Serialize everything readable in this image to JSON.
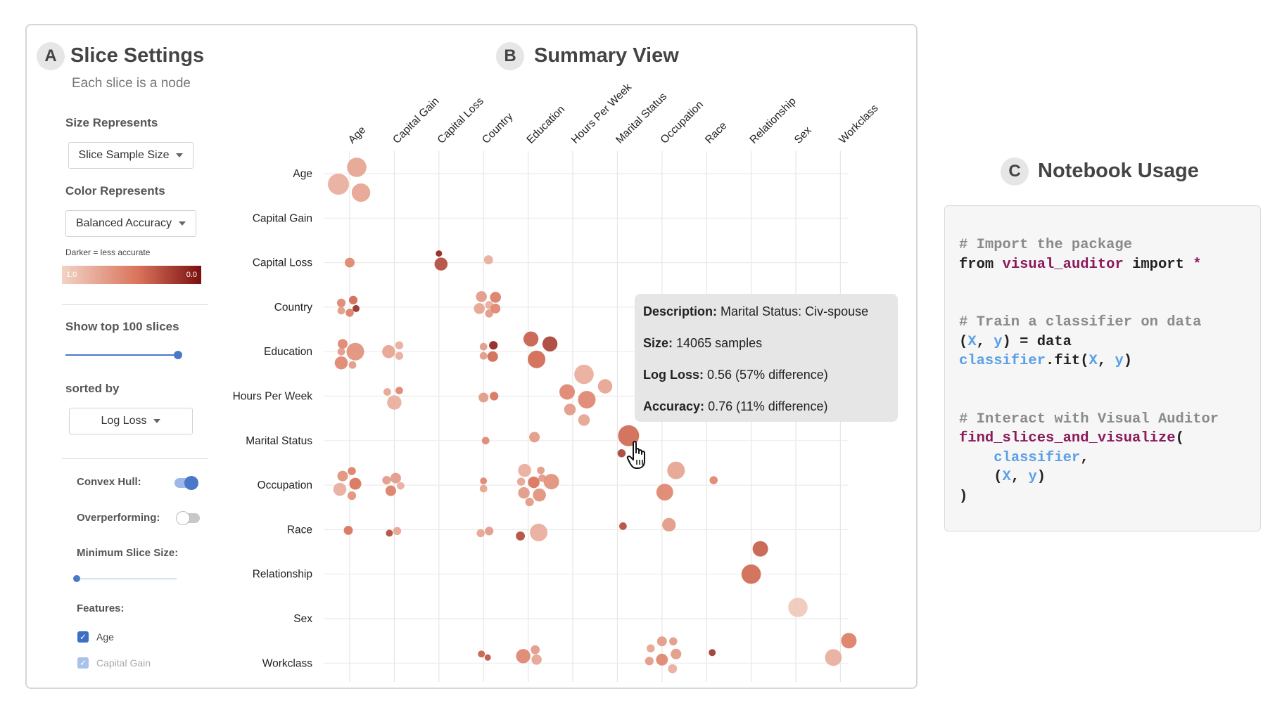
{
  "settings": {
    "badge": "A",
    "title": "Slice Settings",
    "subtitle": "Each slice is a node",
    "size_label": "Size Represents",
    "size_value": "Slice Sample Size",
    "color_label": "Color Represents",
    "color_value": "Balanced Accuracy",
    "color_hint": "Darker = less accurate",
    "scale_min": "1.0",
    "scale_max": "0.0",
    "top_label": "Show top 100 slices",
    "top_value": 100,
    "sorted_label": "sorted by",
    "sorted_value": "Log Loss",
    "convex_hull_label": "Convex Hull:",
    "convex_hull_on": true,
    "overperforming_label": "Overperforming:",
    "overperforming_on": false,
    "min_slice_label": "Minimum Slice Size:",
    "features_label": "Features:",
    "features": [
      {
        "label": "Age",
        "checked": true
      },
      {
        "label": "Capital Gain",
        "checked": true
      }
    ]
  },
  "summary": {
    "badge": "B",
    "title": "Summary View"
  },
  "notebook": {
    "badge": "C",
    "title": "Notebook Usage"
  },
  "tooltip": {
    "description_label": "Description:",
    "description_value": "Marital Status: Civ-spouse",
    "size_label": "Size:",
    "size_value": "14065 samples",
    "logloss_label": "Log Loss:",
    "logloss_value": "0.56 (57% difference)",
    "accuracy_label": "Accuracy:",
    "accuracy_value": "0.76 (11% difference)"
  },
  "colors": {
    "light": "#f2d3c6",
    "mid": "#d9735a",
    "dark": "#7a1010",
    "accent": "#4a78c8"
  },
  "chart_data": {
    "type": "scatter",
    "x_features": [
      "Age",
      "Capital Gain",
      "Capital Loss",
      "Country",
      "Education",
      "Hours Per Week",
      "Marital Status",
      "Occupation",
      "Race",
      "Relationship",
      "Sex",
      "Workclass"
    ],
    "y_features": [
      "Age",
      "Capital Gain",
      "Capital Loss",
      "Country",
      "Education",
      "Hours Per Week",
      "Marital Status",
      "Occupation",
      "Race",
      "Relationship",
      "Sex",
      "Workclass"
    ],
    "legend": {
      "size": "Slice Sample Size",
      "color": "Balanced Accuracy (darker = less accurate)"
    },
    "bubbles": [
      {
        "row": "Age",
        "col": "Age",
        "dx": 10,
        "dy": -9,
        "size": 5,
        "acc": 0.75
      },
      {
        "row": "Age",
        "col": "Age",
        "dx": -16,
        "dy": 15,
        "size": 6,
        "acc": 0.8
      },
      {
        "row": "Age",
        "col": "Age",
        "dx": 16,
        "dy": 27,
        "size": 4.5,
        "acc": 0.75
      },
      {
        "row": "Capital Loss",
        "col": "Age",
        "dx": 0,
        "dy": 0,
        "size": 1,
        "acc": 0.6
      },
      {
        "row": "Capital Loss",
        "col": "Capital Loss",
        "dx": 0,
        "dy": -13,
        "size": 0.3,
        "acc": 0.1
      },
      {
        "row": "Capital Loss",
        "col": "Capital Loss",
        "dx": 3,
        "dy": 2,
        "size": 2,
        "acc": 0.3
      },
      {
        "row": "Capital Loss",
        "col": "Country",
        "dx": 7,
        "dy": -4,
        "size": 0.8,
        "acc": 0.8
      },
      {
        "row": "Country",
        "col": "Age",
        "dx": 5,
        "dy": -10,
        "size": 0.7,
        "acc": 0.45
      },
      {
        "row": "Country",
        "col": "Age",
        "dx": -12,
        "dy": -6,
        "size": 0.7,
        "acc": 0.6
      },
      {
        "row": "Country",
        "col": "Age",
        "dx": -12,
        "dy": 5,
        "size": 0.5,
        "acc": 0.7
      },
      {
        "row": "Country",
        "col": "Age",
        "dx": 0,
        "dy": 8,
        "size": 0.6,
        "acc": 0.55
      },
      {
        "row": "Country",
        "col": "Age",
        "dx": 9,
        "dy": 2,
        "size": 0.4,
        "acc": 0.15
      },
      {
        "row": "Country",
        "col": "Country",
        "dx": -3,
        "dy": -15,
        "size": 1.3,
        "acc": 0.7
      },
      {
        "row": "Country",
        "col": "Country",
        "dx": 17,
        "dy": -14,
        "size": 1.3,
        "acc": 0.55
      },
      {
        "row": "Country",
        "col": "Country",
        "dx": 8,
        "dy": -3,
        "size": 0.6,
        "acc": 0.8
      },
      {
        "row": "Country",
        "col": "Country",
        "dx": -6,
        "dy": 2,
        "size": 1.3,
        "acc": 0.75
      },
      {
        "row": "Country",
        "col": "Country",
        "dx": 8,
        "dy": 9,
        "size": 0.6,
        "acc": 0.7
      },
      {
        "row": "Country",
        "col": "Country",
        "dx": 17,
        "dy": 2,
        "size": 1,
        "acc": 0.6
      },
      {
        "row": "Education",
        "col": "Age",
        "dx": -10,
        "dy": -11,
        "size": 1,
        "acc": 0.6
      },
      {
        "row": "Education",
        "col": "Age",
        "dx": 8,
        "dy": 0,
        "size": 4,
        "acc": 0.65
      },
      {
        "row": "Education",
        "col": "Age",
        "dx": -12,
        "dy": 0,
        "size": 0.5,
        "acc": 0.7
      },
      {
        "row": "Education",
        "col": "Age",
        "dx": -12,
        "dy": 16,
        "size": 2,
        "acc": 0.6
      },
      {
        "row": "Education",
        "col": "Age",
        "dx": 4,
        "dy": 19,
        "size": 0.5,
        "acc": 0.7
      },
      {
        "row": "Education",
        "col": "Capital Gain",
        "dx": -8,
        "dy": 0,
        "size": 2,
        "acc": 0.75
      },
      {
        "row": "Education",
        "col": "Capital Gain",
        "dx": 7,
        "dy": -9,
        "size": 0.6,
        "acc": 0.8
      },
      {
        "row": "Education",
        "col": "Capital Gain",
        "dx": 7,
        "dy": 6,
        "size": 0.6,
        "acc": 0.8
      },
      {
        "row": "Education",
        "col": "Country",
        "dx": 0,
        "dy": -7,
        "size": 0.5,
        "acc": 0.7
      },
      {
        "row": "Education",
        "col": "Country",
        "dx": 0,
        "dy": 6,
        "size": 0.5,
        "acc": 0.7
      },
      {
        "row": "Education",
        "col": "Country",
        "dx": 14,
        "dy": -9,
        "size": 0.7,
        "acc": 0.1
      },
      {
        "row": "Education",
        "col": "Country",
        "dx": 13,
        "dy": 7,
        "size": 1.2,
        "acc": 0.45
      },
      {
        "row": "Education",
        "col": "Education",
        "dx": 4,
        "dy": -18,
        "size": 2.8,
        "acc": 0.4
      },
      {
        "row": "Education",
        "col": "Education",
        "dx": 31,
        "dy": -11,
        "size": 2.8,
        "acc": 0.25
      },
      {
        "row": "Education",
        "col": "Education",
        "dx": 12,
        "dy": 11,
        "size": 4,
        "acc": 0.45
      },
      {
        "row": "Hours Per Week",
        "col": "Capital Gain",
        "dx": -10,
        "dy": -6,
        "size": 0.5,
        "acc": 0.75
      },
      {
        "row": "Hours Per Week",
        "col": "Capital Gain",
        "dx": 7,
        "dy": -8,
        "size": 0.5,
        "acc": 0.6
      },
      {
        "row": "Hours Per Week",
        "col": "Capital Gain",
        "dx": 0,
        "dy": 9,
        "size": 2.5,
        "acc": 0.8
      },
      {
        "row": "Hours Per Week",
        "col": "Country",
        "dx": 0,
        "dy": 2,
        "size": 1,
        "acc": 0.7
      },
      {
        "row": "Hours Per Week",
        "col": "Country",
        "dx": 15,
        "dy": 0,
        "size": 0.7,
        "acc": 0.5
      },
      {
        "row": "Hours Per Week",
        "col": "Hours Per Week",
        "dx": 16,
        "dy": -31,
        "size": 5,
        "acc": 0.8
      },
      {
        "row": "Hours Per Week",
        "col": "Hours Per Week",
        "dx": 46,
        "dy": -14,
        "size": 2.5,
        "acc": 0.75
      },
      {
        "row": "Hours Per Week",
        "col": "Hours Per Week",
        "dx": -8,
        "dy": -6,
        "size": 3,
        "acc": 0.6
      },
      {
        "row": "Hours Per Week",
        "col": "Hours Per Week",
        "dx": 20,
        "dy": 5,
        "size": 4,
        "acc": 0.6
      },
      {
        "row": "Hours Per Week",
        "col": "Hours Per Week",
        "dx": -4,
        "dy": 19,
        "size": 1.5,
        "acc": 0.7
      },
      {
        "row": "Hours Per Week",
        "col": "Hours Per Week",
        "dx": 16,
        "dy": 34,
        "size": 1.5,
        "acc": 0.75
      },
      {
        "row": "Marital Status",
        "col": "Country",
        "dx": 3,
        "dy": 0,
        "size": 0.5,
        "acc": 0.6
      },
      {
        "row": "Marital Status",
        "col": "Education",
        "dx": 9,
        "dy": -5,
        "size": 1.2,
        "acc": 0.7
      },
      {
        "row": "Marital Status",
        "col": "Marital Status",
        "dx": 16,
        "dy": -7,
        "size": 6,
        "acc": 0.45
      },
      {
        "row": "Marital Status",
        "col": "Marital Status",
        "dx": 6,
        "dy": 18,
        "size": 0.6,
        "acc": 0.25
      },
      {
        "row": "Occupation",
        "col": "Age",
        "dx": -10,
        "dy": -13,
        "size": 1.2,
        "acc": 0.65
      },
      {
        "row": "Occupation",
        "col": "Age",
        "dx": 3,
        "dy": -20,
        "size": 0.6,
        "acc": 0.55
      },
      {
        "row": "Occupation",
        "col": "Age",
        "dx": 8,
        "dy": -2,
        "size": 1.6,
        "acc": 0.5
      },
      {
        "row": "Occupation",
        "col": "Age",
        "dx": -14,
        "dy": 6,
        "size": 2,
        "acc": 0.8
      },
      {
        "row": "Occupation",
        "col": "Age",
        "dx": 3,
        "dy": 15,
        "size": 0.7,
        "acc": 0.65
      },
      {
        "row": "Occupation",
        "col": "Capital Gain",
        "dx": -11,
        "dy": -7,
        "size": 0.7,
        "acc": 0.7
      },
      {
        "row": "Occupation",
        "col": "Capital Gain",
        "dx": 2,
        "dy": -10,
        "size": 1.2,
        "acc": 0.7
      },
      {
        "row": "Occupation",
        "col": "Capital Gain",
        "dx": 9,
        "dy": 1,
        "size": 0.5,
        "acc": 0.8
      },
      {
        "row": "Occupation",
        "col": "Capital Gain",
        "dx": -5,
        "dy": 8,
        "size": 1.2,
        "acc": 0.55
      },
      {
        "row": "Occupation",
        "col": "Country",
        "dx": 0,
        "dy": -6,
        "size": 0.4,
        "acc": 0.6
      },
      {
        "row": "Occupation",
        "col": "Country",
        "dx": 0,
        "dy": 5,
        "size": 0.5,
        "acc": 0.75
      },
      {
        "row": "Occupation",
        "col": "Education",
        "dx": -5,
        "dy": -21,
        "size": 2,
        "acc": 0.8
      },
      {
        "row": "Occupation",
        "col": "Education",
        "dx": 18,
        "dy": -21,
        "size": 0.5,
        "acc": 0.7
      },
      {
        "row": "Occupation",
        "col": "Education",
        "dx": -10,
        "dy": -5,
        "size": 0.6,
        "acc": 0.75
      },
      {
        "row": "Occupation",
        "col": "Education",
        "dx": 8,
        "dy": -4,
        "size": 1.5,
        "acc": 0.5
      },
      {
        "row": "Occupation",
        "col": "Education",
        "dx": 20,
        "dy": -10,
        "size": 0.5,
        "acc": 0.7
      },
      {
        "row": "Occupation",
        "col": "Education",
        "dx": 33,
        "dy": -5,
        "size": 3,
        "acc": 0.65
      },
      {
        "row": "Occupation",
        "col": "Education",
        "dx": -6,
        "dy": 11,
        "size": 1.5,
        "acc": 0.7
      },
      {
        "row": "Occupation",
        "col": "Education",
        "dx": 16,
        "dy": 14,
        "size": 2,
        "acc": 0.65
      },
      {
        "row": "Occupation",
        "col": "Education",
        "dx": 2,
        "dy": 24,
        "size": 0.7,
        "acc": 0.7
      },
      {
        "row": "Occupation",
        "col": "Occupation",
        "dx": 20,
        "dy": -21,
        "size": 4,
        "acc": 0.75
      },
      {
        "row": "Occupation",
        "col": "Occupation",
        "dx": 4,
        "dy": 10,
        "size": 3.6,
        "acc": 0.6
      },
      {
        "row": "Occupation",
        "col": "Race",
        "dx": 10,
        "dy": -7,
        "size": 0.6,
        "acc": 0.6
      },
      {
        "row": "Race",
        "col": "Age",
        "dx": -2,
        "dy": 1,
        "size": 0.8,
        "acc": 0.5
      },
      {
        "row": "Race",
        "col": "Capital Gain",
        "dx": -7,
        "dy": 5,
        "size": 0.4,
        "acc": 0.3
      },
      {
        "row": "Race",
        "col": "Capital Gain",
        "dx": 4,
        "dy": 2,
        "size": 0.6,
        "acc": 0.75
      },
      {
        "row": "Race",
        "col": "Country",
        "dx": -4,
        "dy": 5,
        "size": 0.6,
        "acc": 0.75
      },
      {
        "row": "Race",
        "col": "Country",
        "dx": 8,
        "dy": 2,
        "size": 0.7,
        "acc": 0.7
      },
      {
        "row": "Race",
        "col": "Education",
        "dx": -11,
        "dy": 9,
        "size": 0.8,
        "acc": 0.3
      },
      {
        "row": "Race",
        "col": "Education",
        "dx": 15,
        "dy": 4,
        "size": 4,
        "acc": 0.8
      },
      {
        "row": "Race",
        "col": "Marital Status",
        "dx": 8,
        "dy": -5,
        "size": 0.5,
        "acc": 0.3
      },
      {
        "row": "Race",
        "col": "Occupation",
        "dx": 10,
        "dy": -7,
        "size": 2.2,
        "acc": 0.7
      },
      {
        "row": "Relationship",
        "col": "Relationship",
        "dx": 13,
        "dy": -36,
        "size": 3,
        "acc": 0.4
      },
      {
        "row": "Relationship",
        "col": "Relationship",
        "dx": 0,
        "dy": 0,
        "size": 5,
        "acc": 0.45
      },
      {
        "row": "Sex",
        "col": "Sex",
        "dx": 3,
        "dy": -16,
        "size": 5,
        "acc": 0.95
      },
      {
        "row": "Workclass",
        "col": "Country",
        "dx": -3,
        "dy": -13,
        "size": 0.4,
        "acc": 0.4
      },
      {
        "row": "Workclass",
        "col": "Country",
        "dx": 6,
        "dy": -8,
        "size": 0.3,
        "acc": 0.35
      },
      {
        "row": "Workclass",
        "col": "Education",
        "dx": -7,
        "dy": -10,
        "size": 2.5,
        "acc": 0.6
      },
      {
        "row": "Workclass",
        "col": "Education",
        "dx": 10,
        "dy": -19,
        "size": 0.8,
        "acc": 0.7
      },
      {
        "row": "Workclass",
        "col": "Education",
        "dx": 12,
        "dy": -5,
        "size": 1.1,
        "acc": 0.75
      },
      {
        "row": "Workclass",
        "col": "Occupation",
        "dx": 0,
        "dy": -31,
        "size": 1,
        "acc": 0.7
      },
      {
        "row": "Workclass",
        "col": "Occupation",
        "dx": 16,
        "dy": -31,
        "size": 0.6,
        "acc": 0.7
      },
      {
        "row": "Workclass",
        "col": "Occupation",
        "dx": -16,
        "dy": -21,
        "size": 0.6,
        "acc": 0.75
      },
      {
        "row": "Workclass",
        "col": "Occupation",
        "dx": 20,
        "dy": -13,
        "size": 1.2,
        "acc": 0.7
      },
      {
        "row": "Workclass",
        "col": "Occupation",
        "dx": 0,
        "dy": -5,
        "size": 1.6,
        "acc": 0.6
      },
      {
        "row": "Workclass",
        "col": "Occupation",
        "dx": -18,
        "dy": -3,
        "size": 0.7,
        "acc": 0.7
      },
      {
        "row": "Workclass",
        "col": "Occupation",
        "dx": 15,
        "dy": 8,
        "size": 0.8,
        "acc": 0.8
      },
      {
        "row": "Workclass",
        "col": "Race",
        "dx": 8,
        "dy": -15,
        "size": 0.4,
        "acc": 0.2
      },
      {
        "row": "Workclass",
        "col": "Workclass",
        "dx": 12,
        "dy": -32,
        "size": 3,
        "acc": 0.55
      },
      {
        "row": "Workclass",
        "col": "Workclass",
        "dx": -10,
        "dy": -8,
        "size": 3.6,
        "acc": 0.8
      }
    ]
  }
}
